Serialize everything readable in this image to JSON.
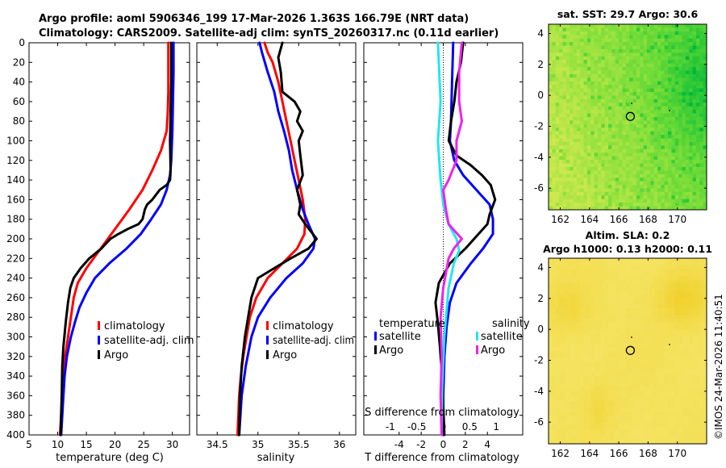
{
  "title": {
    "line1": "Argo profile: aoml 5906346_199 17-Mar-2026 1.363S 166.79E (NRT data)",
    "line2": "Climatology: CARS2009. Satellite-adj clim: synTS_20260317.nc (0.11d earlier)"
  },
  "footer": "©IMOS 24-Mar-2026 11:40:51",
  "colors": {
    "climatology": "#ff0000",
    "satellite": "#0000ff",
    "argo": "#000000",
    "sal_sat": "#22e6ee",
    "sal_argo": "#ee22ee"
  },
  "chart_data": [
    {
      "type": "line",
      "id": "temperature",
      "xlabel": "temperature (deg C)",
      "xlim": [
        5,
        33
      ],
      "ylim": [
        0,
        400
      ],
      "y_inverted": true,
      "xticks": [
        5,
        10,
        15,
        20,
        25,
        30
      ],
      "yticks": [
        0,
        20,
        40,
        60,
        80,
        100,
        120,
        140,
        160,
        180,
        200,
        220,
        240,
        260,
        280,
        300,
        320,
        340,
        360,
        380,
        400
      ],
      "legend": [
        "climatology",
        "satellite-adj. clim",
        "Argo"
      ],
      "series": [
        {
          "name": "climatology",
          "color_key": "climatology",
          "points": [
            [
              29.3,
              0
            ],
            [
              29.3,
              20
            ],
            [
              29.3,
              50
            ],
            [
              29.2,
              70
            ],
            [
              29.0,
              90
            ],
            [
              28.0,
              110
            ],
            [
              26.5,
              130
            ],
            [
              24.8,
              150
            ],
            [
              22.5,
              170
            ],
            [
              20.0,
              190
            ],
            [
              17.5,
              210
            ],
            [
              15.0,
              230
            ],
            [
              13.5,
              245
            ],
            [
              12.8,
              260
            ],
            [
              12.3,
              280
            ],
            [
              11.8,
              300
            ],
            [
              11.3,
              320
            ],
            [
              11.0,
              340
            ],
            [
              10.8,
              360
            ],
            [
              10.6,
              380
            ],
            [
              10.4,
              400
            ]
          ]
        },
        {
          "name": "satellite-adj. clim",
          "color_key": "satellite",
          "points": [
            [
              30.2,
              0
            ],
            [
              30.2,
              30
            ],
            [
              30.1,
              60
            ],
            [
              30.0,
              90
            ],
            [
              29.8,
              120
            ],
            [
              29.6,
              135
            ],
            [
              29.0,
              150
            ],
            [
              28.0,
              165
            ],
            [
              26.3,
              180
            ],
            [
              24.5,
              195
            ],
            [
              22.0,
              210
            ],
            [
              19.0,
              225
            ],
            [
              16.5,
              240
            ],
            [
              15.0,
              255
            ],
            [
              13.8,
              270
            ],
            [
              13.0,
              285
            ],
            [
              12.3,
              300
            ],
            [
              11.6,
              320
            ],
            [
              11.2,
              340
            ],
            [
              11.0,
              360
            ],
            [
              10.8,
              380
            ],
            [
              10.6,
              400
            ]
          ]
        },
        {
          "name": "Argo",
          "color_key": "argo",
          "points": [
            [
              29.8,
              0
            ],
            [
              29.8,
              40
            ],
            [
              29.7,
              70
            ],
            [
              29.6,
              100
            ],
            [
              29.7,
              130
            ],
            [
              29.6,
              140
            ],
            [
              29.0,
              145
            ],
            [
              27.8,
              150
            ],
            [
              26.5,
              160
            ],
            [
              25.6,
              165
            ],
            [
              25.2,
              170
            ],
            [
              24.8,
              180
            ],
            [
              24.1,
              185
            ],
            [
              22.2,
              190
            ],
            [
              20.6,
              195
            ],
            [
              19.2,
              200
            ],
            [
              17.6,
              210
            ],
            [
              15.5,
              220
            ],
            [
              14.0,
              230
            ],
            [
              12.8,
              240
            ],
            [
              12.2,
              250
            ],
            [
              11.8,
              265
            ],
            [
              11.4,
              285
            ],
            [
              11.0,
              310
            ],
            [
              10.8,
              330
            ],
            [
              10.7,
              360
            ],
            [
              10.6,
              380
            ],
            [
              10.5,
              400
            ]
          ]
        }
      ]
    },
    {
      "type": "line",
      "id": "salinity",
      "xlabel": "salinity",
      "xlim": [
        34.25,
        36.2
      ],
      "ylim": [
        0,
        400
      ],
      "y_inverted": true,
      "xticks": [
        34.5,
        35,
        35.5,
        36
      ],
      "xtick_labels": [
        "34.5",
        "35",
        "35.5",
        "36"
      ],
      "legend": [
        "climatology",
        "satellite-adj. clim",
        "Argo"
      ],
      "series": [
        {
          "name": "climatology",
          "color_key": "climatology",
          "points": [
            [
              35.08,
              0
            ],
            [
              35.12,
              10
            ],
            [
              35.18,
              20
            ],
            [
              35.25,
              40
            ],
            [
              35.3,
              60
            ],
            [
              35.35,
              80
            ],
            [
              35.4,
              100
            ],
            [
              35.45,
              120
            ],
            [
              35.5,
              140
            ],
            [
              35.55,
              160
            ],
            [
              35.58,
              180
            ],
            [
              35.57,
              195
            ],
            [
              35.48,
              210
            ],
            [
              35.3,
              225
            ],
            [
              35.12,
              240
            ],
            [
              34.98,
              260
            ],
            [
              34.9,
              280
            ],
            [
              34.86,
              300
            ],
            [
              34.82,
              320
            ],
            [
              34.79,
              340
            ],
            [
              34.77,
              360
            ],
            [
              34.76,
              380
            ],
            [
              34.75,
              400
            ]
          ]
        },
        {
          "name": "satellite-adj. clim",
          "color_key": "satellite",
          "points": [
            [
              35.02,
              0
            ],
            [
              35.05,
              10
            ],
            [
              35.12,
              30
            ],
            [
              35.2,
              50
            ],
            [
              35.25,
              70
            ],
            [
              35.32,
              90
            ],
            [
              35.38,
              110
            ],
            [
              35.42,
              130
            ],
            [
              35.48,
              150
            ],
            [
              35.55,
              170
            ],
            [
              35.62,
              185
            ],
            [
              35.7,
              200
            ],
            [
              35.68,
              210
            ],
            [
              35.55,
              225
            ],
            [
              35.35,
              240
            ],
            [
              35.15,
              260
            ],
            [
              35.0,
              280
            ],
            [
              34.92,
              300
            ],
            [
              34.85,
              330
            ],
            [
              34.8,
              360
            ],
            [
              34.77,
              400
            ]
          ]
        },
        {
          "name": "Argo",
          "color_key": "argo",
          "points": [
            [
              35.3,
              0
            ],
            [
              35.25,
              15
            ],
            [
              35.28,
              30
            ],
            [
              35.3,
              50
            ],
            [
              35.45,
              60
            ],
            [
              35.52,
              70
            ],
            [
              35.48,
              80
            ],
            [
              35.55,
              90
            ],
            [
              35.5,
              100
            ],
            [
              35.52,
              115
            ],
            [
              35.55,
              135
            ],
            [
              35.48,
              150
            ],
            [
              35.52,
              165
            ],
            [
              35.5,
              175
            ],
            [
              35.58,
              185
            ],
            [
              35.72,
              200
            ],
            [
              35.62,
              210
            ],
            [
              35.4,
              220
            ],
            [
              35.2,
              230
            ],
            [
              35.0,
              240
            ],
            [
              34.92,
              260
            ],
            [
              34.88,
              280
            ],
            [
              34.84,
              300
            ],
            [
              34.8,
              330
            ],
            [
              34.78,
              360
            ],
            [
              34.77,
              400
            ]
          ]
        }
      ]
    },
    {
      "type": "line",
      "id": "difference",
      "xlabel": "T difference from climatology",
      "top_axis_label": "S difference from climatology",
      "xlim": [
        -7.2,
        7.2
      ],
      "s_xlim": [
        -1.5,
        1.5
      ],
      "ylim": [
        0,
        400
      ],
      "y_inverted": true,
      "xticks": [
        -4,
        -2,
        0,
        2,
        4
      ],
      "s_xticks": [
        -1,
        -0.5,
        0,
        0.5,
        1
      ],
      "s_xtick_labels": [
        "-1",
        "-0.5",
        "0",
        "0.5",
        "1"
      ],
      "legend_headers": [
        "temperature",
        "salinity"
      ],
      "legend_temperature": [
        "satellite",
        "Argo"
      ],
      "legend_salinity": [
        "satellite",
        "Argo"
      ],
      "series": [
        {
          "name": "T satellite",
          "axis": "T",
          "color_key": "satellite",
          "points": [
            [
              0.9,
              0
            ],
            [
              0.8,
              40
            ],
            [
              0.7,
              80
            ],
            [
              0.6,
              100
            ],
            [
              1.0,
              120
            ],
            [
              1.8,
              135
            ],
            [
              3.0,
              150
            ],
            [
              4.2,
              165
            ],
            [
              4.5,
              180
            ],
            [
              4.5,
              195
            ],
            [
              3.6,
              210
            ],
            [
              2.5,
              225
            ],
            [
              1.2,
              245
            ],
            [
              0.6,
              265
            ],
            [
              0.3,
              290
            ],
            [
              0.1,
              320
            ],
            [
              0.0,
              360
            ],
            [
              0.0,
              400
            ]
          ]
        },
        {
          "name": "T Argo",
          "axis": "T",
          "color_key": "argo",
          "points": [
            [
              1.8,
              0
            ],
            [
              1.6,
              20
            ],
            [
              1.2,
              40
            ],
            [
              1.0,
              60
            ],
            [
              0.7,
              80
            ],
            [
              0.5,
              100
            ],
            [
              1.2,
              115
            ],
            [
              2.5,
              125
            ],
            [
              3.5,
              135
            ],
            [
              4.3,
              145
            ],
            [
              4.7,
              160
            ],
            [
              4.2,
              175
            ],
            [
              4.0,
              185
            ],
            [
              3.2,
              195
            ],
            [
              2.0,
              210
            ],
            [
              0.6,
              225
            ],
            [
              -0.4,
              245
            ],
            [
              -0.7,
              265
            ],
            [
              -0.5,
              285
            ],
            [
              -0.3,
              310
            ],
            [
              -0.1,
              340
            ],
            [
              0.0,
              370
            ],
            [
              0.1,
              400
            ]
          ]
        },
        {
          "name": "S satellite",
          "axis": "S",
          "color_key": "sal_sat",
          "points": [
            [
              -0.1,
              0
            ],
            [
              -0.05,
              60
            ],
            [
              -0.1,
              100
            ],
            [
              -0.05,
              140
            ],
            [
              0.0,
              165
            ],
            [
              0.1,
              185
            ],
            [
              0.25,
              200
            ],
            [
              0.3,
              212
            ],
            [
              0.2,
              225
            ],
            [
              0.1,
              250
            ],
            [
              0.02,
              300
            ],
            [
              -0.02,
              350
            ],
            [
              -0.03,
              400
            ]
          ]
        },
        {
          "name": "S Argo",
          "axis": "S",
          "color_key": "sal_argo",
          "points": [
            [
              0.35,
              0
            ],
            [
              0.3,
              30
            ],
            [
              0.3,
              60
            ],
            [
              0.35,
              80
            ],
            [
              0.25,
              100
            ],
            [
              0.25,
              120
            ],
            [
              0.1,
              140
            ],
            [
              0.0,
              150
            ],
            [
              0.05,
              170
            ],
            [
              0.1,
              185
            ],
            [
              0.35,
              200
            ],
            [
              0.2,
              210
            ],
            [
              0.1,
              220
            ],
            [
              0.0,
              250
            ],
            [
              -0.05,
              280
            ],
            [
              -0.03,
              320
            ],
            [
              -0.05,
              360
            ],
            [
              -0.03,
              400
            ]
          ]
        }
      ]
    },
    {
      "type": "heatmap",
      "id": "sst_map",
      "title": "sat. SST: 29.7 Argo: 30.6",
      "xlim": [
        161.2,
        172
      ],
      "ylim": [
        -7.4,
        4.6
      ],
      "xticks": [
        162,
        164,
        166,
        168,
        170
      ],
      "yticks": [
        4,
        2,
        0,
        -2,
        -4,
        -6
      ],
      "marker": [
        166.79,
        -1.363
      ]
    },
    {
      "type": "heatmap",
      "id": "sla_map",
      "title_line1": "Altim. SLA: 0.2",
      "title_line2": "Argo h1000: 0.13 h2000: 0.11",
      "xlim": [
        161.2,
        172
      ],
      "ylim": [
        -7.4,
        4.6
      ],
      "xticks": [
        162,
        164,
        166,
        168,
        170
      ],
      "yticks": [
        4,
        2,
        0,
        -2,
        -4,
        -6
      ],
      "marker": [
        166.79,
        -1.363
      ]
    }
  ]
}
